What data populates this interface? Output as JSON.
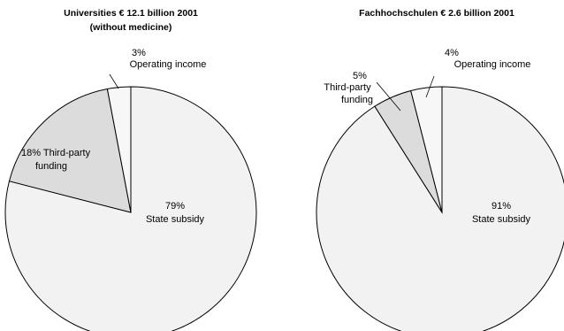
{
  "chart_data": [
    {
      "type": "pie",
      "title_line1": "Universities € 12.1 billion 2001",
      "title_line2": "(without medicine)",
      "slices": [
        {
          "label": "State subsidy",
          "value": 79,
          "pct_label": "79%",
          "color": "#f2f2f2"
        },
        {
          "label": "Third-party funding",
          "value": 18,
          "pct_label": "18%",
          "color": "#dcdcdc"
        },
        {
          "label": "Operating income",
          "value": 3,
          "pct_label": "3%",
          "color": "#f7f7f7"
        }
      ]
    },
    {
      "type": "pie",
      "title_line1": "Fachhochschulen € 2.6 billion 2001",
      "slices": [
        {
          "label": "State subsidy",
          "value": 91,
          "pct_label": "91%",
          "color": "#f2f2f2"
        },
        {
          "label": "Third-party funding",
          "value": 5,
          "pct_label": "5%",
          "color": "#dcdcdc"
        },
        {
          "label": "Operating income",
          "value": 4,
          "pct_label": "4%",
          "color": "#f7f7f7"
        }
      ]
    }
  ]
}
